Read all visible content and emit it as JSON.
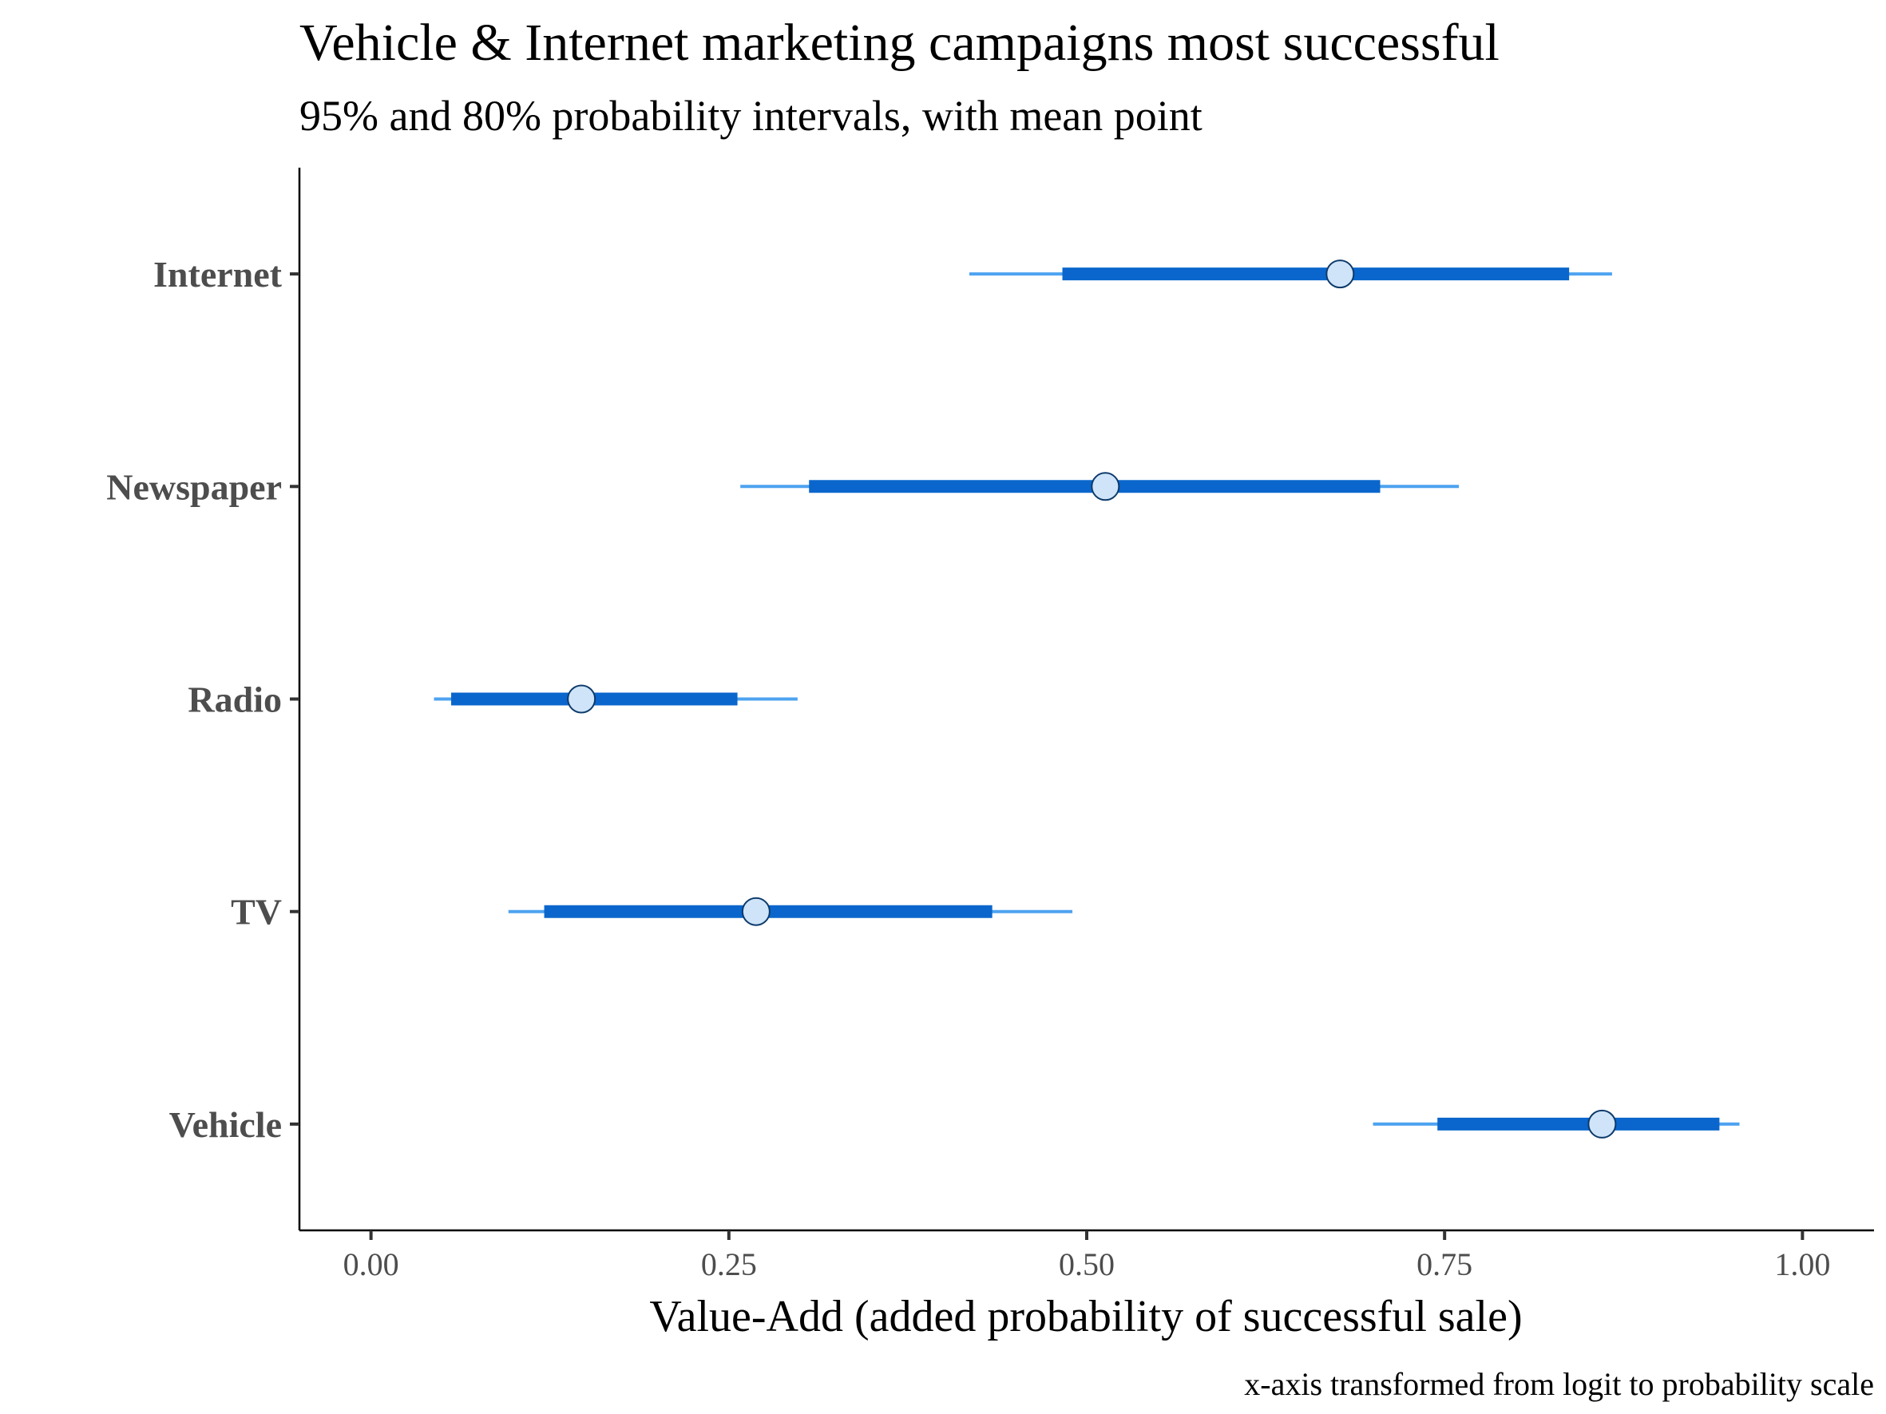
{
  "chart_data": {
    "type": "interval",
    "title": "Vehicle & Internet marketing campaigns most successful",
    "subtitle": "95% and 80% probability intervals, with mean point",
    "xlabel": "Value-Add (added probability of successful sale)",
    "caption": "x-axis transformed from logit to probability scale",
    "xlim": [
      -0.05,
      1.05
    ],
    "xticks": [
      0.0,
      0.25,
      0.5,
      0.75,
      1.0
    ],
    "xtick_labels": [
      "0.00",
      "0.25",
      "0.50",
      "0.75",
      "1.00"
    ],
    "grid": false,
    "categories": [
      "Internet",
      "Newspaper",
      "Radio",
      "TV",
      "Vehicle"
    ],
    "series": [
      {
        "category": "Internet",
        "mean": 0.677,
        "ci80": [
          0.483,
          0.837
        ],
        "ci95": [
          0.418,
          0.867
        ]
      },
      {
        "category": "Newspaper",
        "mean": 0.513,
        "ci80": [
          0.306,
          0.705
        ],
        "ci95": [
          0.258,
          0.76
        ]
      },
      {
        "category": "Radio",
        "mean": 0.147,
        "ci80": [
          0.056,
          0.256
        ],
        "ci95": [
          0.044,
          0.298
        ]
      },
      {
        "category": "TV",
        "mean": 0.269,
        "ci80": [
          0.121,
          0.434
        ],
        "ci95": [
          0.096,
          0.49
        ]
      },
      {
        "category": "Vehicle",
        "mean": 0.86,
        "ci80": [
          0.745,
          0.942
        ],
        "ci95": [
          0.7,
          0.956
        ]
      }
    ],
    "colors": {
      "ci95": "#4ea3f0",
      "ci80": "#0a66cc",
      "point_fill": "#cfe4f8",
      "point_stroke": "#0d3a6b"
    }
  }
}
